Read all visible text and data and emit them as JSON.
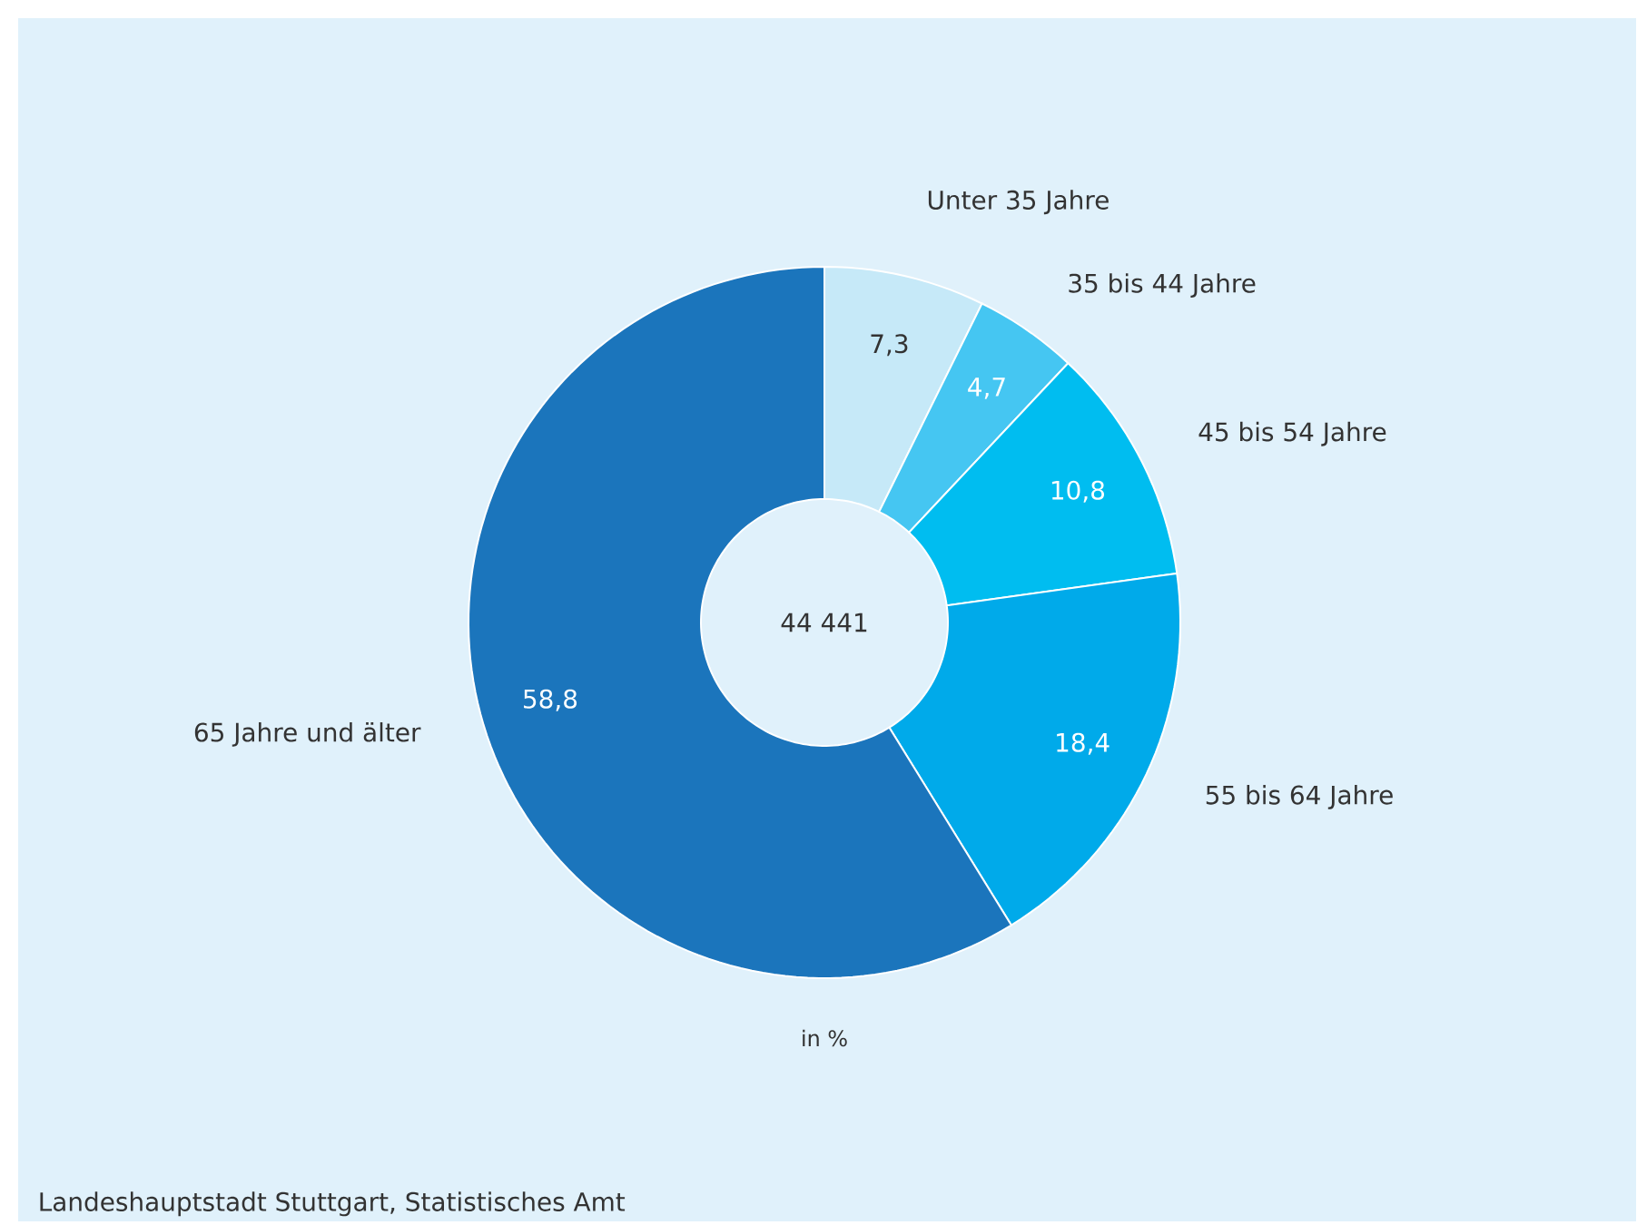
{
  "chart_data": {
    "type": "donut",
    "categories": [
      "Unter 35 Jahre",
      "35 bis 44 Jahre",
      "45 bis 54 Jahre",
      "55 bis 64 Jahre",
      "65 Jahre und älter"
    ],
    "values": [
      7.3,
      4.7,
      10.8,
      18.4,
      58.8
    ],
    "value_labels": [
      "7,3",
      "4,7",
      "10,8",
      "18,4",
      "58,8"
    ],
    "colors": [
      "#c6e9f8",
      "#45c6f2",
      "#00bdf0",
      "#00aaea",
      "#1b75bc"
    ],
    "annotations": [
      "44 441",
      "in %",
      "Landeshauptstadt Stuttgart, Statistisches Amt"
    ]
  }
}
